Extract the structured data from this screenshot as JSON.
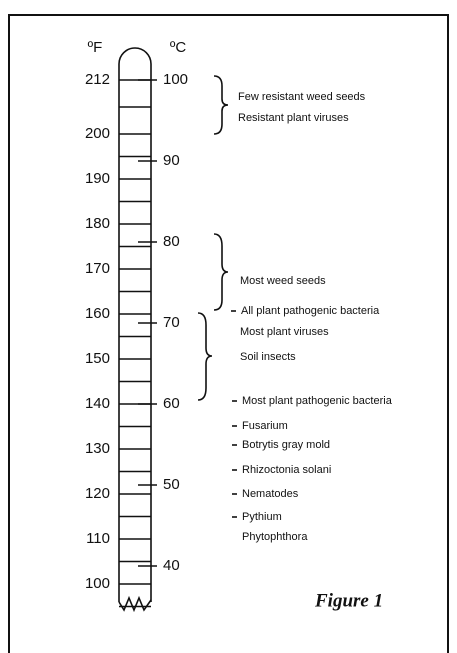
{
  "figure": {
    "fahrenheit_unit": "ºF",
    "celsius_unit": "ºC",
    "fahrenheit_ticks": [
      212,
      200,
      190,
      180,
      170,
      160,
      150,
      140,
      130,
      120,
      110,
      100
    ],
    "celsius_ticks": [
      100,
      90,
      80,
      70,
      60,
      50,
      40
    ],
    "annotations": [
      "Few resistant weed seeds",
      "Resistant plant viruses",
      "Most weed seeds",
      "All plant pathogenic bacteria",
      "Most plant viruses",
      "Soil insects",
      "Most plant pathogenic bacteria",
      "Fusarium",
      "Botrytis gray mold",
      "Rhizoctonia solani",
      "Nematodes",
      "Pythium",
      "Phytophthora"
    ],
    "caption": "Figure 1"
  }
}
